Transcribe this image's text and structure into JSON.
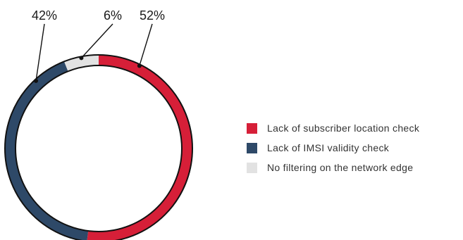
{
  "chart_data": {
    "type": "pie",
    "variant": "donut",
    "categories": [
      "Lack of subscriber location check",
      "Lack of IMSI validity check",
      "No filtering on the network edge"
    ],
    "values": [
      52,
      42,
      6
    ],
    "value_labels": [
      "52%",
      "42%",
      "6%"
    ],
    "colors": [
      "#D61F38",
      "#2E4968",
      "#E2E2E2"
    ],
    "legend_position": "right"
  },
  "legend": {
    "items": [
      {
        "label": "Lack of subscriber location check",
        "color": "#D61F38"
      },
      {
        "label": "Lack of IMSI validity check",
        "color": "#2E4968"
      },
      {
        "label": "No filtering on the network edge",
        "color": "#E2E2E2"
      }
    ]
  }
}
